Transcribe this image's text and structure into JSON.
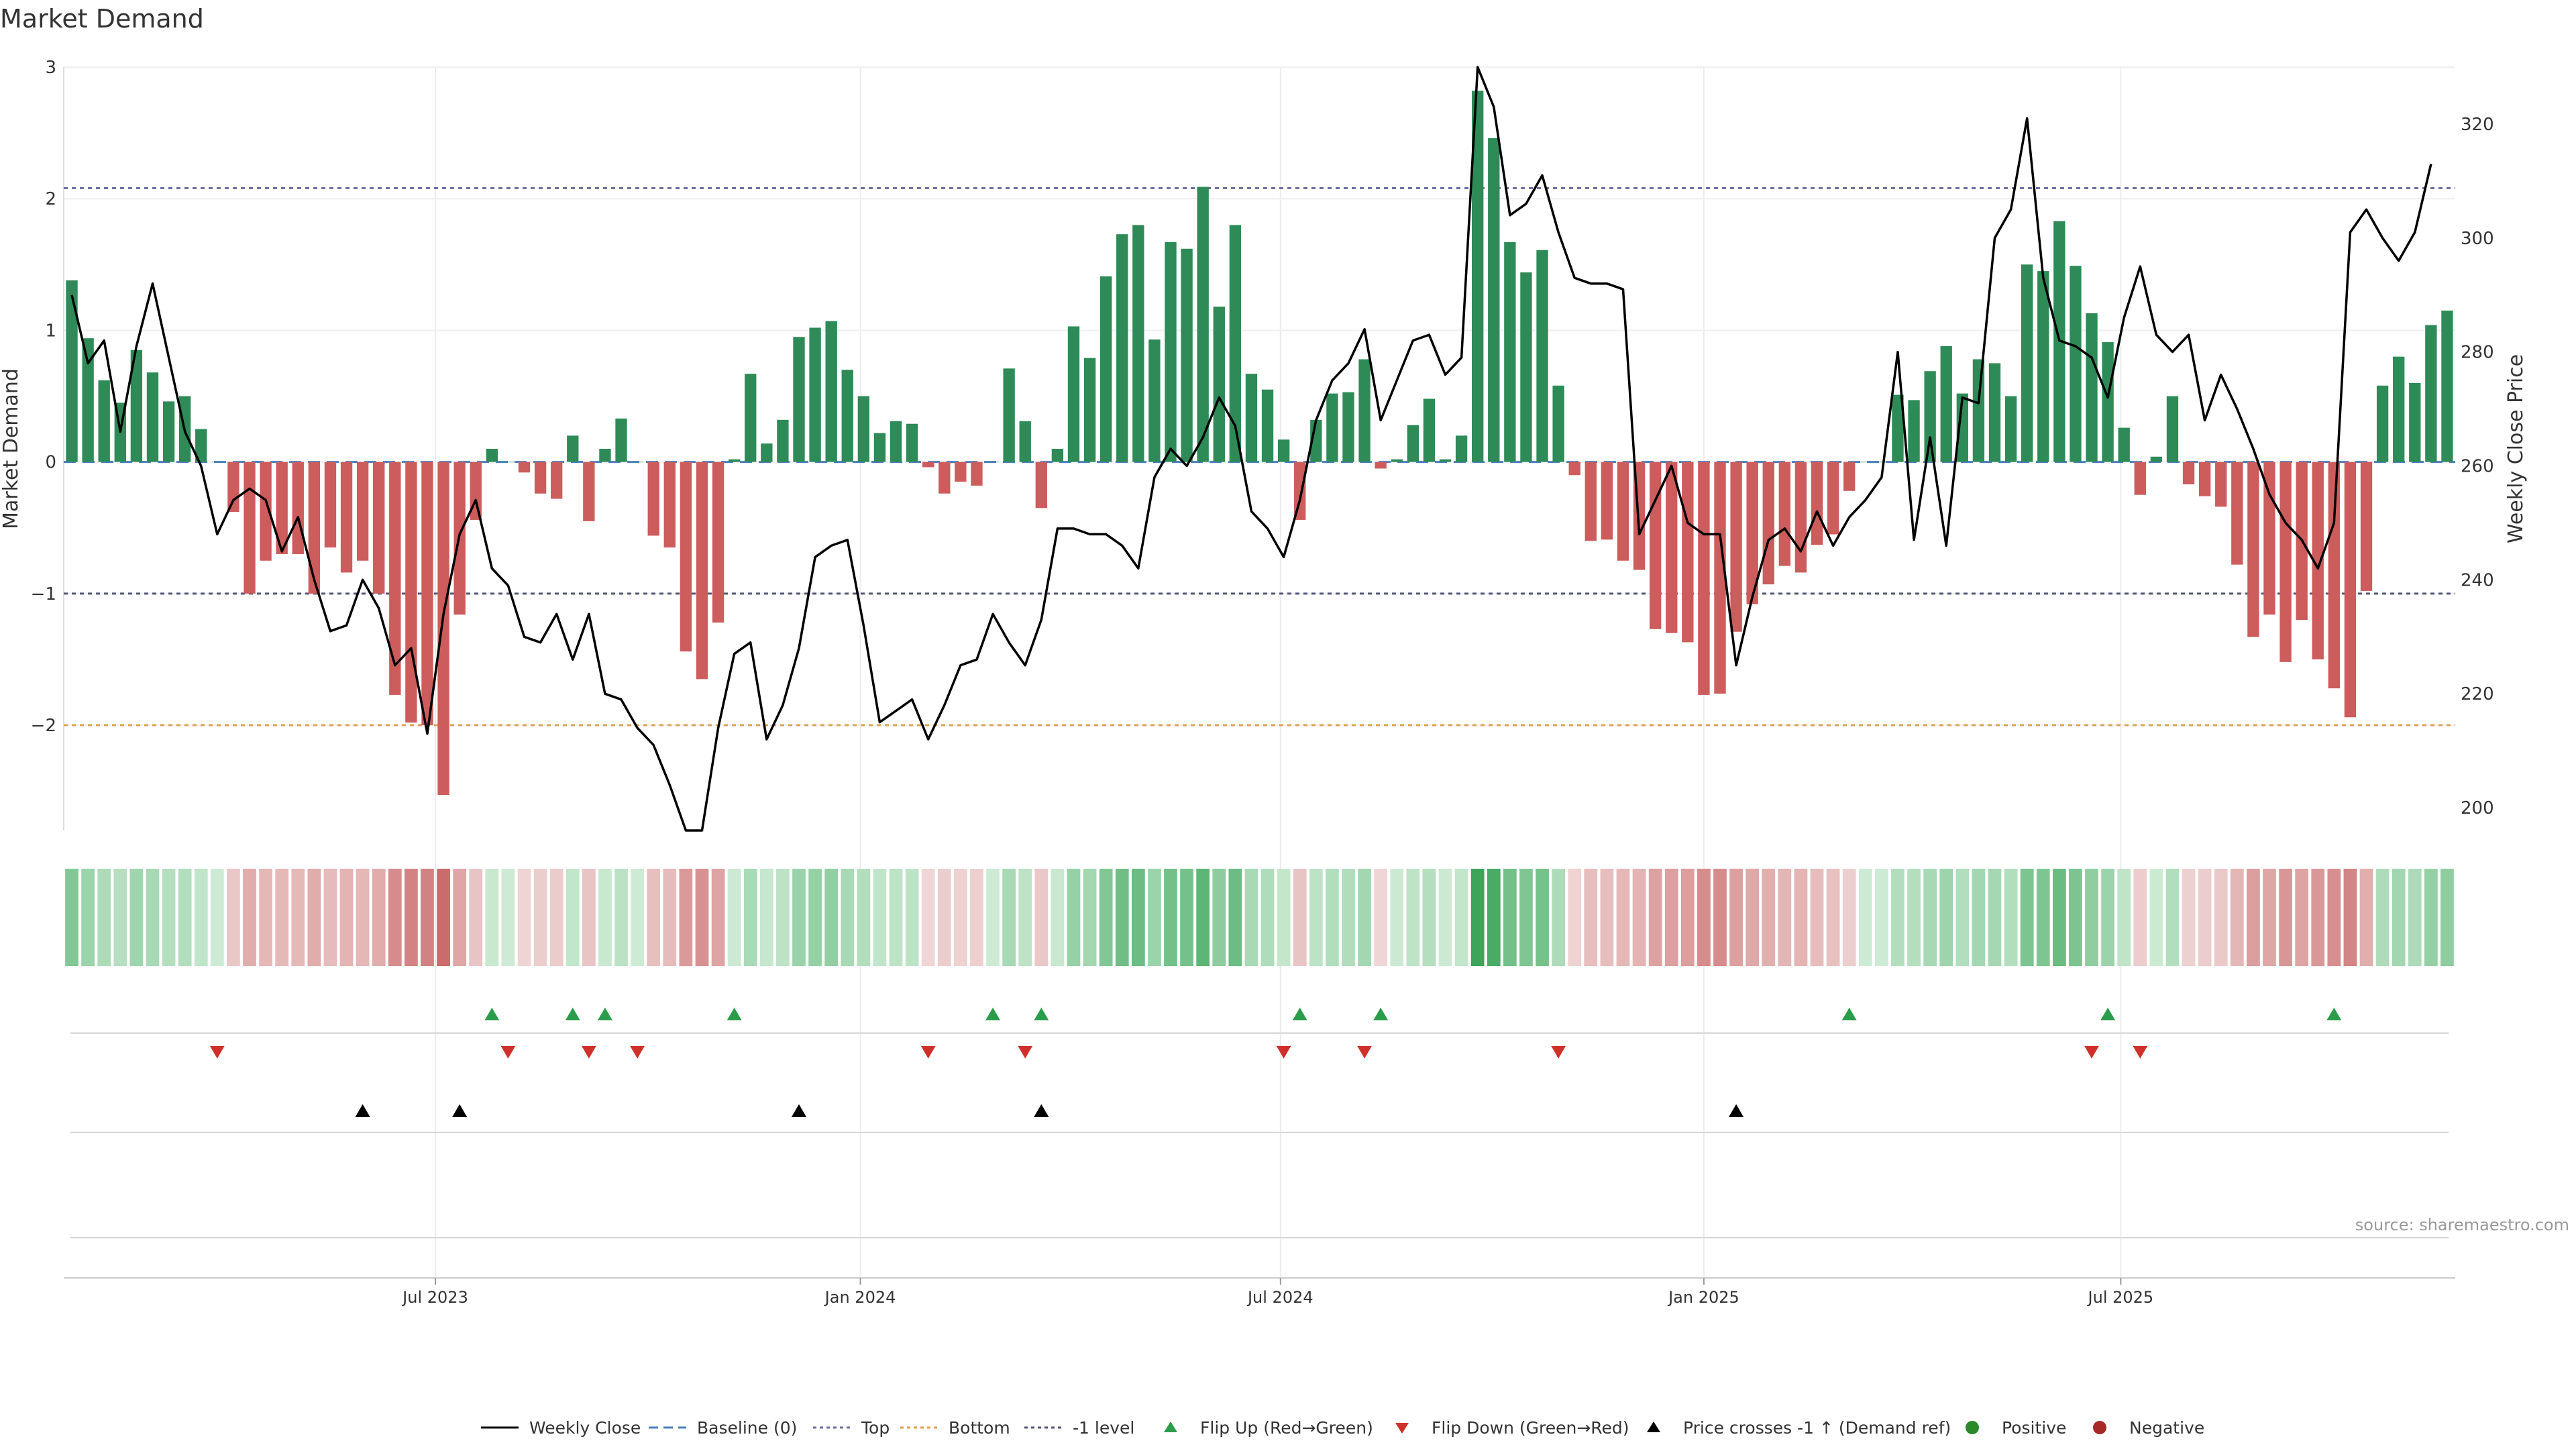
{
  "title": "Market Demand",
  "source": "source: sharemaestro.com",
  "chart_data": {
    "type": "bar",
    "overlay": "line",
    "title": "Market Demand",
    "ylabel": "Market Demand",
    "y2label": "Weekly Close Price",
    "ylim": [
      -2.8,
      3.0
    ],
    "y2lim": [
      196,
      330
    ],
    "yticks": [
      3,
      2,
      1,
      0,
      -1,
      -2
    ],
    "ytick_labels": [
      "3",
      "2",
      "1",
      "0",
      "−1",
      "−2"
    ],
    "y2ticks": [
      200,
      220,
      240,
      260,
      280,
      300,
      320
    ],
    "xtick_labels": [
      {
        "label": "Jul 2023",
        "index": 22.5
      },
      {
        "label": "Jan 2024",
        "index": 48.8
      },
      {
        "label": "Jul 2024",
        "index": 74.8
      },
      {
        "label": "Jan 2025",
        "index": 101.0
      },
      {
        "label": "Jul 2025",
        "index": 126.8
      }
    ],
    "reference_lines": [
      {
        "name": "Top",
        "value": 2.08,
        "color": "#6e6e9e",
        "style": "dotted"
      },
      {
        "name": "-1 level",
        "value": -1.0,
        "color": "#555577",
        "style": "dotted"
      },
      {
        "name": "Bottom",
        "value": -2.0,
        "color": "#e0a050",
        "style": "dotted"
      },
      {
        "name": "Baseline (0)",
        "value": 0.0,
        "color": "#4a7fc0",
        "style": "dashed"
      }
    ],
    "demand": [
      1.38,
      0.94,
      0.62,
      0.45,
      0.85,
      0.68,
      0.46,
      0.5,
      0.25,
      0.0,
      -0.38,
      -1.0,
      -0.75,
      -0.7,
      -0.7,
      -1.0,
      -0.65,
      -0.84,
      -0.75,
      -1.0,
      -1.77,
      -1.98,
      -2.0,
      -2.53,
      -1.16,
      -0.44,
      0.1,
      0.0,
      -0.08,
      -0.24,
      -0.28,
      0.2,
      -0.45,
      0.1,
      0.33,
      0.0,
      -0.56,
      -0.65,
      -1.44,
      -1.65,
      -1.22,
      0.02,
      0.67,
      0.14,
      0.32,
      0.95,
      1.02,
      1.07,
      0.7,
      0.5,
      0.22,
      0.31,
      0.29,
      -0.04,
      -0.24,
      -0.15,
      -0.18,
      0.0,
      0.71,
      0.31,
      -0.35,
      0.1,
      1.03,
      0.79,
      1.41,
      1.73,
      1.8,
      0.93,
      1.67,
      1.62,
      2.09,
      1.18,
      1.8,
      0.67,
      0.55,
      0.17,
      -0.44,
      0.32,
      0.52,
      0.53,
      0.78,
      -0.05,
      0.02,
      0.28,
      0.48,
      0.02,
      0.2,
      2.82,
      2.46,
      1.67,
      1.44,
      1.61,
      0.58,
      -0.1,
      -0.6,
      -0.59,
      -0.75,
      -0.82,
      -1.27,
      -1.3,
      -1.37,
      -1.77,
      -1.76,
      -1.29,
      -1.08,
      -0.93,
      -0.79,
      -0.84,
      -0.63,
      -0.55,
      -0.22,
      0.0,
      0.0,
      0.51,
      0.47,
      0.69,
      0.88,
      0.52,
      0.78,
      0.75,
      0.5,
      1.5,
      1.45,
      1.83,
      1.49,
      1.13,
      0.91,
      0.26,
      -0.25,
      0.04,
      0.5,
      -0.17,
      -0.26,
      -0.34,
      -0.78,
      -1.33,
      -1.16,
      -1.52,
      -1.2,
      -1.5,
      -1.72,
      -1.94,
      -0.98,
      0.58,
      0.8,
      0.6,
      1.04,
      1.15
    ],
    "close": [
      290,
      278,
      282,
      266,
      281,
      292,
      279,
      266,
      260,
      248,
      254,
      256,
      254,
      245,
      251,
      240,
      231,
      232,
      240,
      235,
      225,
      228,
      213,
      234,
      248,
      254,
      242,
      239,
      230,
      229,
      234,
      226,
      234,
      220,
      219,
      214,
      211,
      204,
      196,
      196,
      214,
      227,
      229,
      212,
      218,
      228,
      244,
      246,
      247,
      232,
      215,
      217,
      219,
      212,
      218,
      225,
      226,
      234,
      229,
      225,
      233,
      249,
      249,
      248,
      248,
      246,
      242,
      258,
      263,
      260,
      265,
      272,
      267,
      252,
      249,
      244,
      254,
      268,
      275,
      278,
      284,
      268,
      275,
      282,
      283,
      276,
      279,
      330,
      323,
      304,
      306,
      311,
      301,
      293,
      292,
      292,
      291,
      248,
      254,
      260,
      250,
      248,
      248,
      225,
      237,
      247,
      249,
      245,
      252,
      246,
      251,
      254,
      258,
      280,
      247,
      265,
      246,
      272,
      271,
      300,
      305,
      321,
      293,
      282,
      281,
      279,
      272,
      286,
      295,
      283,
      280,
      283,
      268,
      276,
      270,
      263,
      255,
      250,
      247,
      242,
      250,
      301,
      305,
      300,
      296,
      301,
      313
    ],
    "flip_up": [
      26,
      31,
      33,
      41,
      57,
      60,
      76,
      81,
      110,
      126,
      140
    ],
    "flip_down": [
      9,
      27,
      32,
      35,
      53,
      59,
      75,
      80,
      92,
      125,
      128
    ],
    "price_crosses": [
      18,
      24,
      45,
      60,
      103
    ]
  },
  "legend": [
    {
      "label": "Weekly Close",
      "symbol": "line",
      "color": "#000000"
    },
    {
      "label": "Baseline (0)",
      "symbol": "dashed",
      "color": "#4a7fc0"
    },
    {
      "label": "Top",
      "symbol": "dotted",
      "color": "#6e6e9e"
    },
    {
      "label": "Bottom",
      "symbol": "dotted",
      "color": "#e0a050"
    },
    {
      "label": "-1 level",
      "symbol": "dotted",
      "color": "#555577"
    },
    {
      "label": "Flip Up (Red→Green)",
      "symbol": "triangle-up",
      "color": "#2a9d4b"
    },
    {
      "label": "Flip Down (Green→Red)",
      "symbol": "triangle-down",
      "color": "#d0302a"
    },
    {
      "label": "Price crosses -1 ↑ (Demand ref)",
      "symbol": "triangle-up",
      "color": "#000000"
    },
    {
      "label": "Positive",
      "symbol": "dot",
      "color": "#2a8a2a"
    },
    {
      "label": "Negative",
      "symbol": "dot",
      "color": "#a82828"
    }
  ],
  "colors": {
    "positive_bar": "#2e8b57",
    "negative_bar": "#cd5c5c",
    "close_line": "#000000"
  }
}
